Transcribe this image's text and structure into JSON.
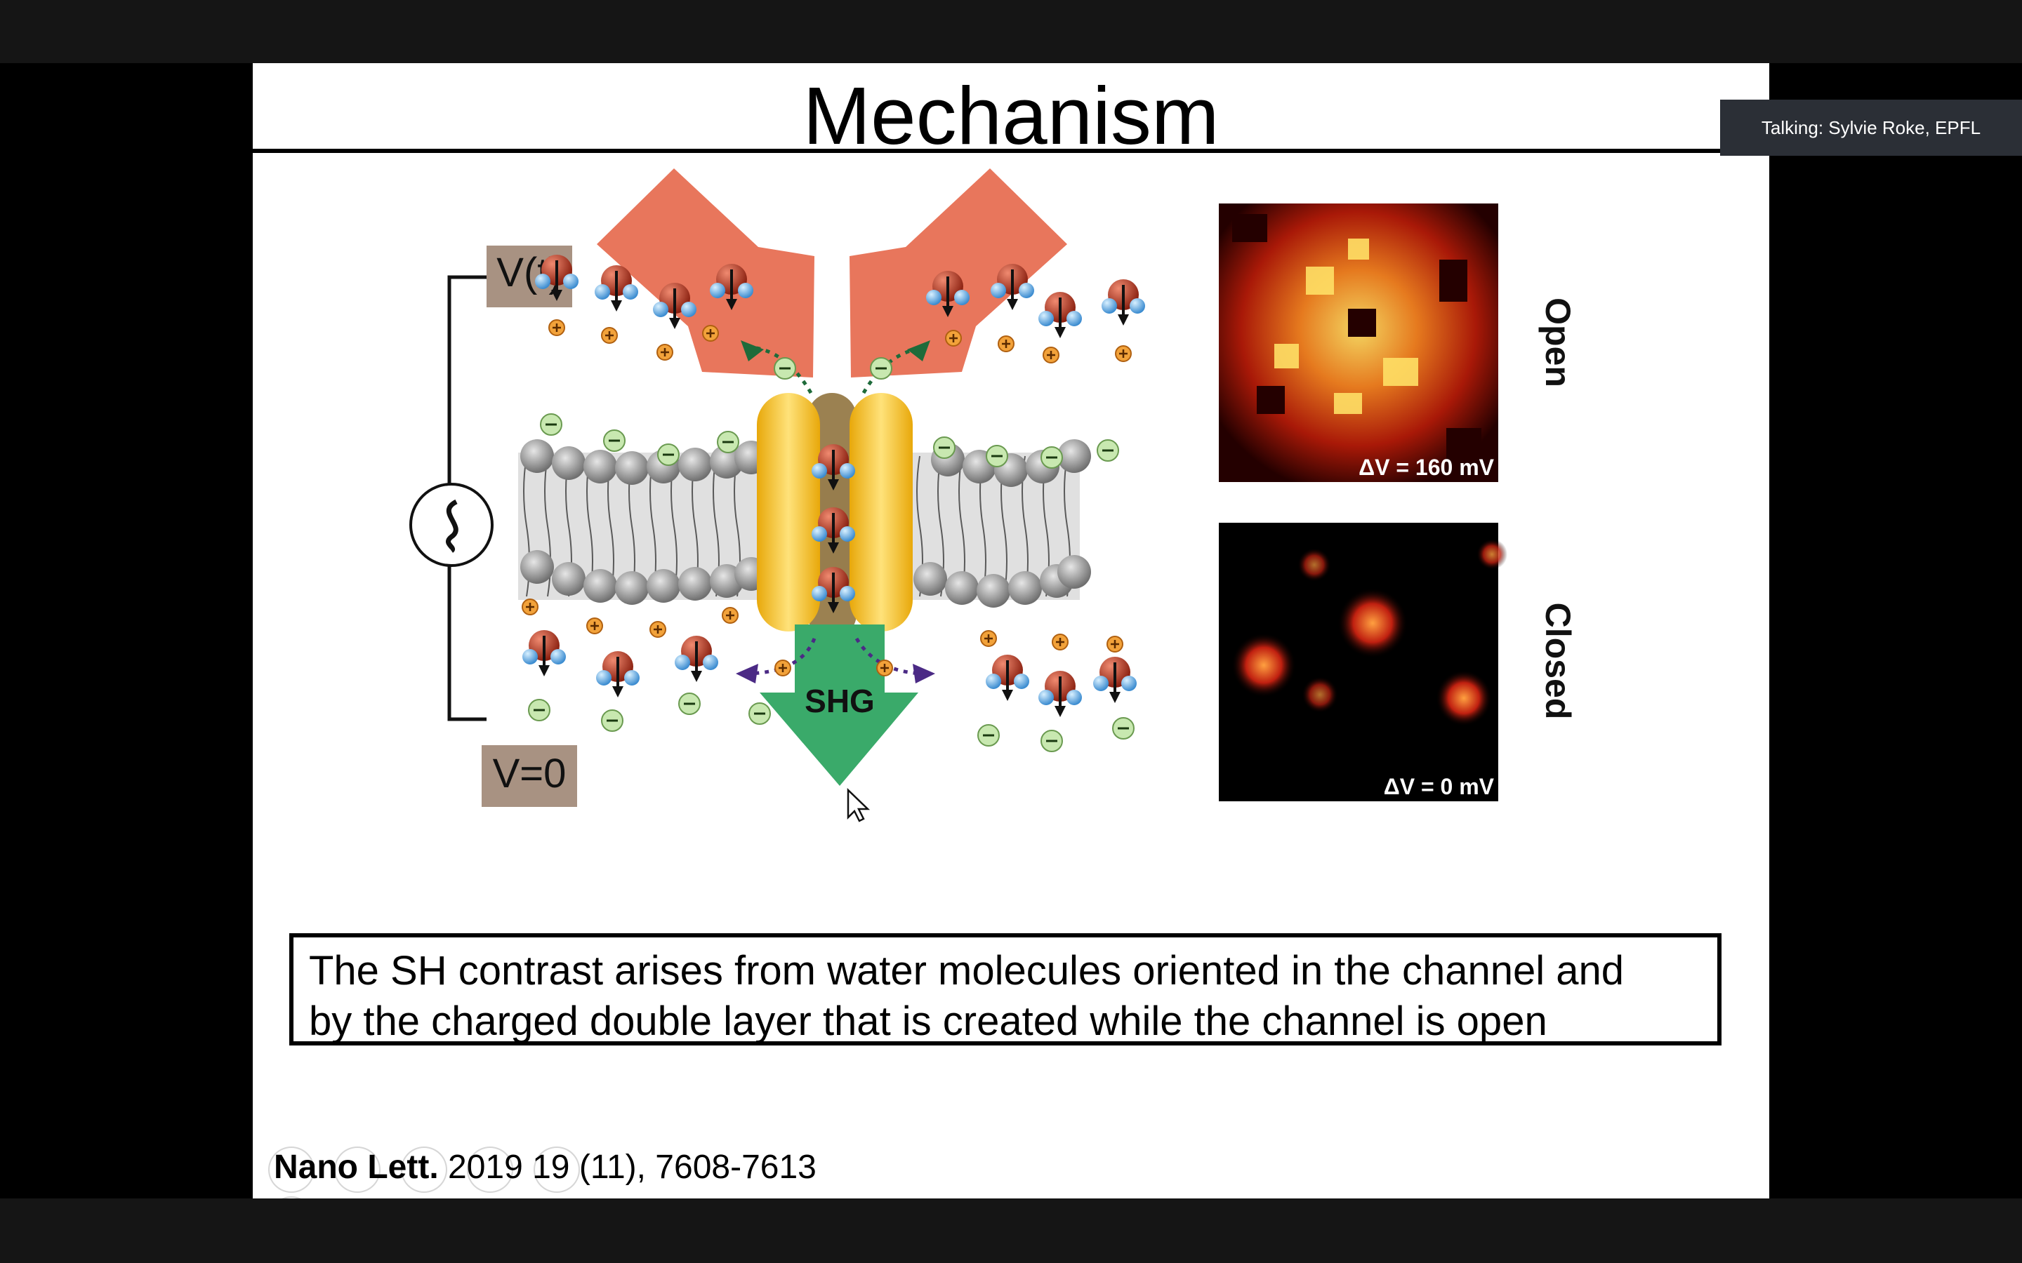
{
  "slide": {
    "title": "Mechanism",
    "figure": {
      "voltage_top_label": "V(t)",
      "voltage_bottom_label": "V=0",
      "shg_label": "SHG",
      "open_label": "Open",
      "closed_label": "Closed",
      "open_voltage": "ΔV = 160 mV",
      "closed_voltage": "ΔV = 0 mV"
    },
    "caption": {
      "line1": "The SH contrast arises from water molecules oriented in the channel and",
      "line2": "by the charged double layer that is created while the channel is open"
    },
    "citation": {
      "journal": "Nano Lett.",
      "details": " 2019 19 (11), 7608-7613"
    }
  },
  "meeting": {
    "talking_indicator": "Talking: Sylvie Roke, EPFL"
  },
  "colors": {
    "laser_arrow": "#e8765c",
    "shg_arrow": "#3aaa6a",
    "channel_protein": "#f3c12a",
    "membrane": "#9a9a9a",
    "label_box": "#a89282"
  }
}
